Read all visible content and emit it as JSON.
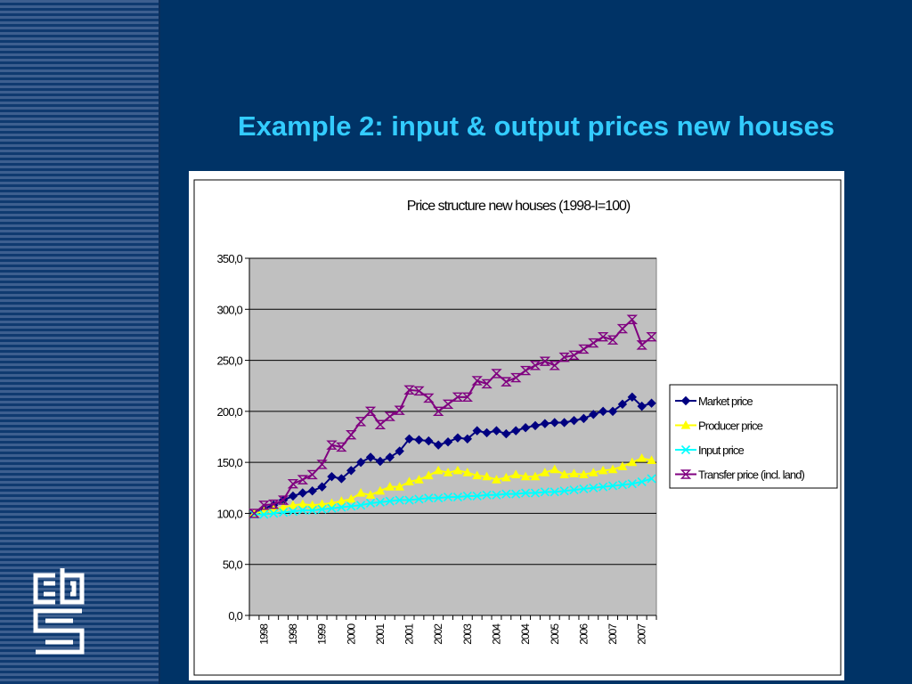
{
  "slide": {
    "title": "Example 2: input & output prices new houses",
    "logo_text": "cbs"
  },
  "colors": {
    "background": "#003366",
    "title": "#33ccff",
    "plot_area": "#c0c0c0",
    "market": "#000080",
    "producer": "#ffff00",
    "input": "#00ffff",
    "transfer": "#800080"
  },
  "chart_data": {
    "type": "line",
    "title": "Price structure new houses (1998-I=100)",
    "xlabel": "",
    "ylabel": "",
    "ylim": [
      0,
      350
    ],
    "yticks": [
      "0,0",
      "50,0",
      "100,0",
      "150,0",
      "200,0",
      "250,0",
      "300,0",
      "350,0"
    ],
    "grid": true,
    "legend_position": "right",
    "x_tick_labels": [
      "1998",
      "1998",
      "1999",
      "2000",
      "2001",
      "2001",
      "2002",
      "2003",
      "2004",
      "2004",
      "2005",
      "2006",
      "2007",
      "2007"
    ],
    "series": [
      {
        "name": "Market price",
        "color": "#000080",
        "marker": "diamond",
        "values": [
          100,
          105,
          108,
          113,
          117,
          120,
          122,
          126,
          136,
          134,
          142,
          150,
          155,
          151,
          155,
          161,
          173,
          172,
          171,
          167,
          170,
          174,
          173,
          181,
          179,
          181,
          178,
          181,
          184,
          186,
          188,
          189,
          189,
          191,
          193,
          197,
          200,
          200,
          207,
          214,
          205,
          208
        ]
      },
      {
        "name": "Producer price",
        "color": "#ffff00",
        "marker": "triangle",
        "values": [
          100,
          102,
          104,
          106,
          108,
          109,
          108,
          109,
          110,
          112,
          114,
          120,
          118,
          122,
          126,
          126,
          131,
          133,
          137,
          142,
          140,
          142,
          140,
          137,
          136,
          133,
          135,
          138,
          136,
          136,
          140,
          143,
          138,
          139,
          138,
          140,
          142,
          143,
          146,
          150,
          154,
          152
        ]
      },
      {
        "name": "Input price",
        "color": "#00ffff",
        "marker": "x",
        "values": [
          99,
          99,
          100,
          101,
          102,
          103,
          103,
          104,
          105,
          106,
          107,
          108,
          110,
          111,
          112,
          113,
          113,
          114,
          115,
          115,
          116,
          116,
          117,
          117,
          118,
          118,
          119,
          119,
          120,
          120,
          121,
          121,
          122,
          123,
          124,
          125,
          126,
          127,
          128,
          129,
          131,
          134
        ]
      },
      {
        "name": "Transfer price (incl. land)",
        "color": "#800080",
        "marker": "hourglass",
        "values": [
          100,
          108,
          109,
          113,
          129,
          133,
          138,
          148,
          167,
          165,
          177,
          190,
          200,
          187,
          195,
          201,
          221,
          220,
          213,
          200,
          207,
          214,
          214,
          230,
          227,
          237,
          229,
          233,
          240,
          245,
          249,
          245,
          253,
          255,
          261,
          267,
          273,
          270,
          281,
          290,
          265,
          273
        ]
      }
    ]
  }
}
